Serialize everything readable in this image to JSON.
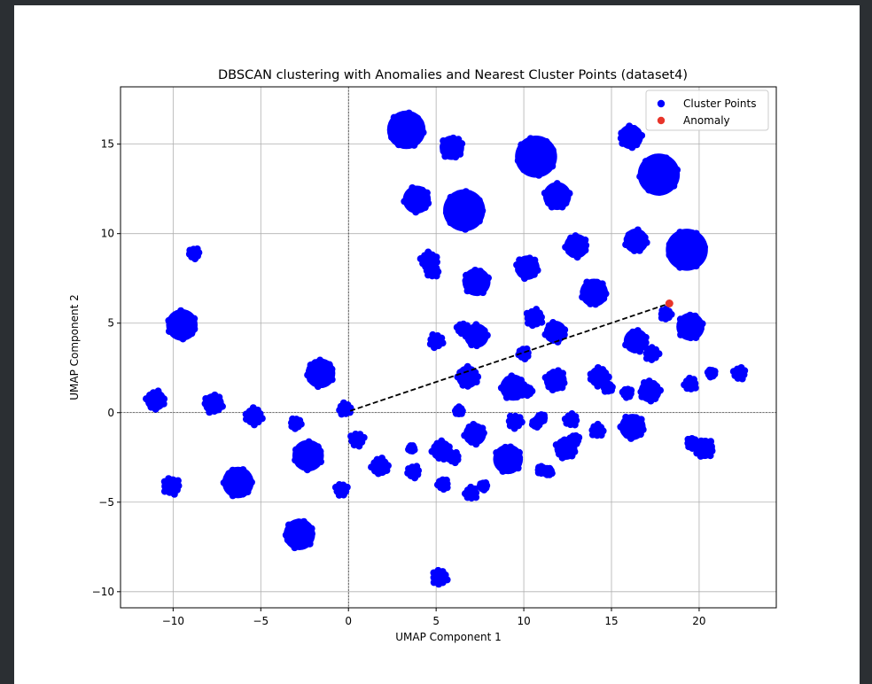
{
  "chart_data": {
    "type": "scatter",
    "title": "DBSCAN clustering with Anomalies and Nearest Cluster Points (dataset4)",
    "xlabel": "UMAP Component 1",
    "ylabel": "UMAP Component 2",
    "xlim": [
      -13,
      24.4
    ],
    "ylim": [
      -10.9,
      18.2
    ],
    "xticks": [
      -10,
      -5,
      0,
      5,
      10,
      15,
      20
    ],
    "yticks": [
      -10,
      -5,
      0,
      5,
      10,
      15
    ],
    "xtick_labels": [
      "−10",
      "−5",
      "0",
      "5",
      "10",
      "15",
      "20"
    ],
    "ytick_labels": [
      "−10",
      "−5",
      "0",
      "5",
      "10",
      "15"
    ],
    "grid": true,
    "legend_position": "upper right",
    "colors": {
      "cluster": "#0000ff",
      "anomaly": "#e8352a",
      "grid": "#b0b0b0",
      "connector": "#000000"
    },
    "series": [
      {
        "name": "Cluster Points",
        "clusters": [
          {
            "x": 3.3,
            "y": 15.8,
            "r": 1.1
          },
          {
            "x": 5.9,
            "y": 14.8,
            "r": 0.7
          },
          {
            "x": 10.7,
            "y": 14.3,
            "r": 1.2
          },
          {
            "x": 16.1,
            "y": 15.4,
            "r": 0.7
          },
          {
            "x": 17.7,
            "y": 13.3,
            "r": 1.2
          },
          {
            "x": 3.9,
            "y": 11.9,
            "r": 0.8
          },
          {
            "x": 6.6,
            "y": 11.3,
            "r": 1.2
          },
          {
            "x": 11.9,
            "y": 12.1,
            "r": 0.8
          },
          {
            "x": 19.3,
            "y": 9.1,
            "r": 1.2
          },
          {
            "x": 16.4,
            "y": 9.6,
            "r": 0.7
          },
          {
            "x": 13.0,
            "y": 9.3,
            "r": 0.7
          },
          {
            "x": 4.6,
            "y": 8.5,
            "r": 0.55
          },
          {
            "x": 4.8,
            "y": 7.9,
            "r": 0.4
          },
          {
            "x": 7.3,
            "y": 7.3,
            "r": 0.8
          },
          {
            "x": 10.2,
            "y": 8.1,
            "r": 0.7
          },
          {
            "x": 14.0,
            "y": 6.7,
            "r": 0.8
          },
          {
            "x": -8.8,
            "y": 8.9,
            "r": 0.35
          },
          {
            "x": -9.5,
            "y": 4.9,
            "r": 0.9
          },
          {
            "x": 10.6,
            "y": 5.3,
            "r": 0.55
          },
          {
            "x": 11.8,
            "y": 4.5,
            "r": 0.65
          },
          {
            "x": 6.5,
            "y": 4.7,
            "r": 0.35
          },
          {
            "x": 7.3,
            "y": 4.3,
            "r": 0.7
          },
          {
            "x": 5.0,
            "y": 4.0,
            "r": 0.45
          },
          {
            "x": 16.4,
            "y": 4.0,
            "r": 0.7
          },
          {
            "x": 17.3,
            "y": 3.3,
            "r": 0.45
          },
          {
            "x": 19.5,
            "y": 4.8,
            "r": 0.8
          },
          {
            "x": 18.1,
            "y": 5.5,
            "r": 0.35
          },
          {
            "x": -1.6,
            "y": 2.2,
            "r": 0.85
          },
          {
            "x": 6.8,
            "y": 2.0,
            "r": 0.65
          },
          {
            "x": 9.4,
            "y": 1.4,
            "r": 0.75
          },
          {
            "x": 11.8,
            "y": 1.8,
            "r": 0.65
          },
          {
            "x": 14.3,
            "y": 2.0,
            "r": 0.6
          },
          {
            "x": 17.2,
            "y": 1.2,
            "r": 0.65
          },
          {
            "x": 19.5,
            "y": 1.6,
            "r": 0.4
          },
          {
            "x": 22.3,
            "y": 2.2,
            "r": 0.4
          },
          {
            "x": 20.7,
            "y": 2.2,
            "r": 0.25
          },
          {
            "x": 10.0,
            "y": 3.3,
            "r": 0.35
          },
          {
            "x": 10.2,
            "y": 1.2,
            "r": 0.3
          },
          {
            "x": 14.8,
            "y": 1.4,
            "r": 0.3
          },
          {
            "x": 15.9,
            "y": 1.1,
            "r": 0.3
          },
          {
            "x": -11.0,
            "y": 0.7,
            "r": 0.6
          },
          {
            "x": -7.7,
            "y": 0.5,
            "r": 0.6
          },
          {
            "x": -5.4,
            "y": -0.2,
            "r": 0.55
          },
          {
            "x": -0.2,
            "y": 0.2,
            "r": 0.4
          },
          {
            "x": -3.0,
            "y": -0.6,
            "r": 0.35
          },
          {
            "x": 6.3,
            "y": 0.1,
            "r": 0.25
          },
          {
            "x": 9.5,
            "y": -0.5,
            "r": 0.45
          },
          {
            "x": 11.0,
            "y": -0.3,
            "r": 0.25
          },
          {
            "x": 10.7,
            "y": -0.6,
            "r": 0.25
          },
          {
            "x": 12.7,
            "y": -0.4,
            "r": 0.4
          },
          {
            "x": 14.2,
            "y": -1.0,
            "r": 0.4
          },
          {
            "x": 16.2,
            "y": -0.8,
            "r": 0.75
          },
          {
            "x": 7.2,
            "y": -1.2,
            "r": 0.65
          },
          {
            "x": 0.5,
            "y": -1.5,
            "r": 0.45
          },
          {
            "x": -2.3,
            "y": -2.4,
            "r": 0.9
          },
          {
            "x": 1.8,
            "y": -3.0,
            "r": 0.55
          },
          {
            "x": 3.7,
            "y": -3.3,
            "r": 0.4
          },
          {
            "x": 3.6,
            "y": -2.0,
            "r": 0.2
          },
          {
            "x": 5.3,
            "y": -2.1,
            "r": 0.6
          },
          {
            "x": 6.0,
            "y": -2.5,
            "r": 0.35
          },
          {
            "x": 9.1,
            "y": -2.6,
            "r": 0.85
          },
          {
            "x": 12.4,
            "y": -2.0,
            "r": 0.65
          },
          {
            "x": 12.9,
            "y": -1.5,
            "r": 0.3
          },
          {
            "x": 11.0,
            "y": -3.2,
            "r": 0.25
          },
          {
            "x": 11.4,
            "y": -3.3,
            "r": 0.25
          },
          {
            "x": 19.6,
            "y": -1.7,
            "r": 0.35
          },
          {
            "x": 20.3,
            "y": -2.0,
            "r": 0.6
          },
          {
            "x": -10.1,
            "y": -4.1,
            "r": 0.55
          },
          {
            "x": -6.3,
            "y": -3.9,
            "r": 0.9
          },
          {
            "x": -0.4,
            "y": -4.3,
            "r": 0.4
          },
          {
            "x": 5.4,
            "y": -4.0,
            "r": 0.35
          },
          {
            "x": 7.0,
            "y": -4.5,
            "r": 0.4
          },
          {
            "x": 7.7,
            "y": -4.1,
            "r": 0.25
          },
          {
            "x": -2.8,
            "y": -6.8,
            "r": 0.9
          },
          {
            "x": 5.2,
            "y": -9.2,
            "r": 0.5
          }
        ]
      },
      {
        "name": "Anomaly",
        "points": [
          {
            "x": 18.3,
            "y": 6.1
          }
        ]
      }
    ],
    "connector": {
      "from": [
        0.1,
        0.1
      ],
      "to": [
        18.3,
        6.1
      ],
      "style": "dashed"
    },
    "reference_lines": {
      "x": 0,
      "y": 0
    }
  }
}
